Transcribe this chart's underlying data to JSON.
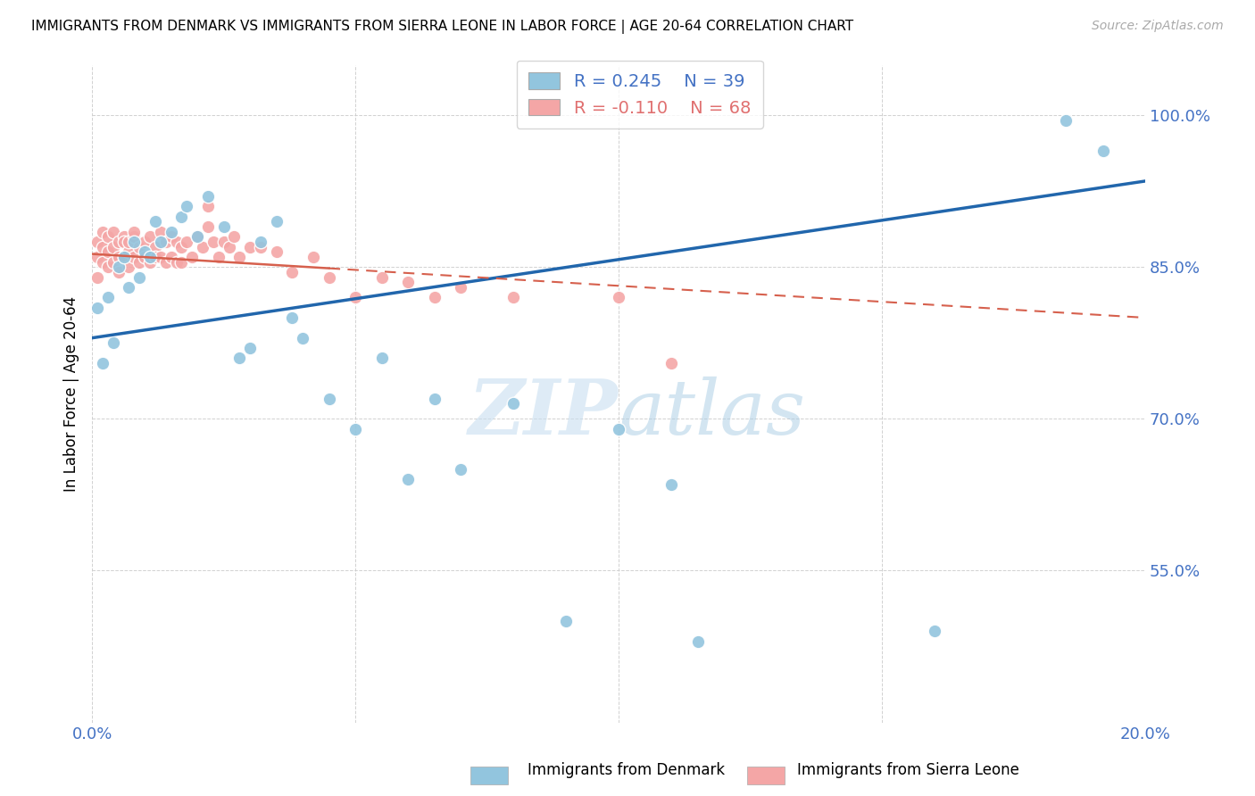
{
  "title": "IMMIGRANTS FROM DENMARK VS IMMIGRANTS FROM SIERRA LEONE IN LABOR FORCE | AGE 20-64 CORRELATION CHART",
  "source": "Source: ZipAtlas.com",
  "ylabel": "In Labor Force | Age 20-64",
  "xlim": [
    0.0,
    0.2
  ],
  "ylim": [
    0.4,
    1.05
  ],
  "xtick_positions": [
    0.0,
    0.05,
    0.1,
    0.15,
    0.2
  ],
  "xticklabels": [
    "0.0%",
    "",
    "",
    "",
    "20.0%"
  ],
  "ytick_positions": [
    0.55,
    0.7,
    0.85,
    1.0
  ],
  "ytick_labels": [
    "55.0%",
    "70.0%",
    "85.0%",
    "100.0%"
  ],
  "denmark_color": "#92c5de",
  "sierra_leone_color": "#f4a6a6",
  "denmark_R": 0.245,
  "denmark_N": 39,
  "sierra_leone_R": -0.11,
  "sierra_leone_N": 68,
  "trend_denmark_color": "#2166ac",
  "trend_sierra_leone_color": "#d6604d",
  "denmark_points_x": [
    0.001,
    0.002,
    0.003,
    0.004,
    0.005,
    0.006,
    0.007,
    0.008,
    0.009,
    0.01,
    0.011,
    0.012,
    0.013,
    0.015,
    0.017,
    0.018,
    0.02,
    0.022,
    0.025,
    0.028,
    0.03,
    0.032,
    0.035,
    0.038,
    0.04,
    0.045,
    0.05,
    0.055,
    0.06,
    0.065,
    0.07,
    0.08,
    0.09,
    0.1,
    0.11,
    0.115,
    0.16,
    0.185,
    0.192
  ],
  "denmark_points_y": [
    0.81,
    0.755,
    0.82,
    0.775,
    0.85,
    0.86,
    0.83,
    0.875,
    0.84,
    0.865,
    0.86,
    0.895,
    0.875,
    0.885,
    0.9,
    0.91,
    0.88,
    0.92,
    0.89,
    0.76,
    0.77,
    0.875,
    0.895,
    0.8,
    0.78,
    0.72,
    0.69,
    0.76,
    0.64,
    0.72,
    0.65,
    0.715,
    0.5,
    0.69,
    0.635,
    0.48,
    0.49,
    0.995,
    0.965
  ],
  "sierra_leone_points_x": [
    0.001,
    0.001,
    0.001,
    0.002,
    0.002,
    0.002,
    0.003,
    0.003,
    0.003,
    0.004,
    0.004,
    0.004,
    0.005,
    0.005,
    0.005,
    0.006,
    0.006,
    0.006,
    0.007,
    0.007,
    0.007,
    0.008,
    0.008,
    0.008,
    0.009,
    0.009,
    0.01,
    0.01,
    0.011,
    0.011,
    0.012,
    0.012,
    0.013,
    0.013,
    0.014,
    0.014,
    0.015,
    0.015,
    0.016,
    0.016,
    0.017,
    0.017,
    0.018,
    0.019,
    0.02,
    0.021,
    0.022,
    0.022,
    0.023,
    0.024,
    0.025,
    0.026,
    0.027,
    0.028,
    0.03,
    0.032,
    0.035,
    0.038,
    0.042,
    0.045,
    0.05,
    0.055,
    0.06,
    0.065,
    0.07,
    0.08,
    0.1,
    0.11
  ],
  "sierra_leone_points_y": [
    0.86,
    0.875,
    0.84,
    0.87,
    0.885,
    0.855,
    0.865,
    0.88,
    0.85,
    0.87,
    0.885,
    0.855,
    0.86,
    0.875,
    0.845,
    0.88,
    0.86,
    0.875,
    0.865,
    0.85,
    0.875,
    0.88,
    0.86,
    0.885,
    0.87,
    0.855,
    0.875,
    0.86,
    0.88,
    0.855,
    0.87,
    0.86,
    0.885,
    0.86,
    0.875,
    0.855,
    0.88,
    0.86,
    0.875,
    0.855,
    0.87,
    0.855,
    0.875,
    0.86,
    0.88,
    0.87,
    0.89,
    0.91,
    0.875,
    0.86,
    0.875,
    0.87,
    0.88,
    0.86,
    0.87,
    0.87,
    0.865,
    0.845,
    0.86,
    0.84,
    0.82,
    0.84,
    0.835,
    0.82,
    0.83,
    0.82,
    0.82,
    0.755
  ]
}
